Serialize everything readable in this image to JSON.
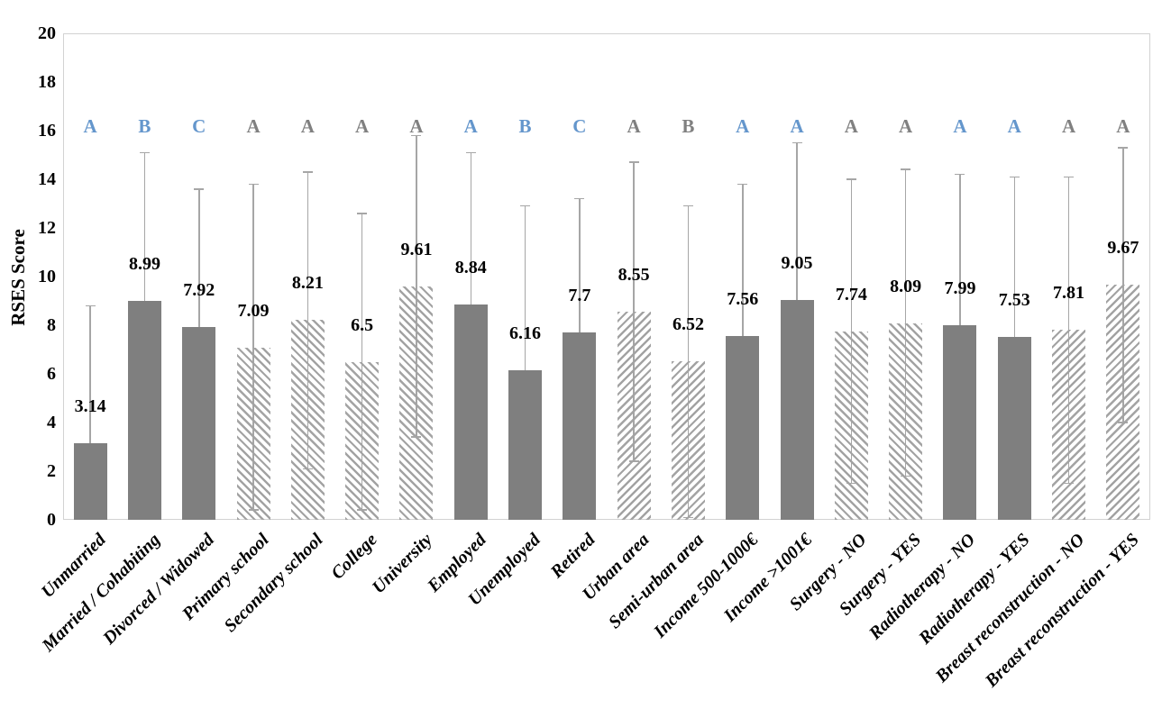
{
  "chart_data": {
    "type": "bar",
    "title": "",
    "xlabel": "",
    "ylabel": "RSES Score",
    "ylim": [
      0,
      20
    ],
    "yticks": [
      0,
      2,
      4,
      6,
      8,
      10,
      12,
      14,
      16,
      18,
      20
    ],
    "grid": false,
    "legend": "none",
    "letter_row_y_value": 16.2,
    "colors": {
      "solid_bar": "#7f7f7f",
      "hatch_stripe": "#a3a3a3",
      "error_bar": "#a6a6a6",
      "letter_blue": "#6496cc",
      "letter_gray": "#808080",
      "axis_border": "#d2d2d2",
      "text": "#000000"
    },
    "bars": [
      {
        "category": "Unmarried",
        "value": 3.14,
        "label": "3.14",
        "letter": "A",
        "letter_color": "blue",
        "pattern": "solid",
        "err_high": 8.8,
        "err_low": 0
      },
      {
        "category": "Married / Cohabiting",
        "value": 8.99,
        "label": "8.99",
        "letter": "B",
        "letter_color": "blue",
        "pattern": "solid",
        "err_high": 15.1,
        "err_low": 2.9
      },
      {
        "category": "Divorced / Widowed",
        "value": 7.92,
        "label": "7.92",
        "letter": "C",
        "letter_color": "blue",
        "pattern": "solid",
        "err_high": 13.6,
        "err_low": 2.2
      },
      {
        "category": "Primary school",
        "value": 7.09,
        "label": "7.09",
        "letter": "A",
        "letter_color": "gray",
        "pattern": "hatchdown",
        "err_high": 13.8,
        "err_low": 0.4
      },
      {
        "category": "Secondary school",
        "value": 8.21,
        "label": "8.21",
        "letter": "A",
        "letter_color": "gray",
        "pattern": "hatchdown",
        "err_high": 14.3,
        "err_low": 2.1
      },
      {
        "category": "College",
        "value": 6.5,
        "label": "6.5",
        "letter": "A",
        "letter_color": "gray",
        "pattern": "hatchdown",
        "err_high": 12.6,
        "err_low": 0.4
      },
      {
        "category": "University",
        "value": 9.61,
        "label": "9.61",
        "letter": "A",
        "letter_color": "gray",
        "pattern": "hatchdown",
        "err_high": 15.8,
        "err_low": 3.4
      },
      {
        "category": "Employed",
        "value": 8.84,
        "label": "8.84",
        "letter": "A",
        "letter_color": "blue",
        "pattern": "solid",
        "err_high": 15.1,
        "err_low": 2.6
      },
      {
        "category": "Unemployed",
        "value": 6.16,
        "label": "6.16",
        "letter": "B",
        "letter_color": "blue",
        "pattern": "solid",
        "err_high": 12.9,
        "err_low": 0
      },
      {
        "category": "Retired",
        "value": 7.7,
        "label": "7.7",
        "letter": "C",
        "letter_color": "blue",
        "pattern": "solid",
        "err_high": 13.2,
        "err_low": 2.2
      },
      {
        "category": "Urban area",
        "value": 8.55,
        "label": "8.55",
        "letter": "A",
        "letter_color": "gray",
        "pattern": "hatchup",
        "err_high": 14.7,
        "err_low": 2.4
      },
      {
        "category": "Semi-urban area",
        "value": 6.52,
        "label": "6.52",
        "letter": "B",
        "letter_color": "gray",
        "pattern": "hatchup",
        "err_high": 12.9,
        "err_low": 0.1
      },
      {
        "category": "Income 500-1000€",
        "value": 7.56,
        "label": "7.56",
        "letter": "A",
        "letter_color": "blue",
        "pattern": "solid",
        "err_high": 13.8,
        "err_low": 1.3
      },
      {
        "category": "Income >1001€",
        "value": 9.05,
        "label": "9.05",
        "letter": "A",
        "letter_color": "blue",
        "pattern": "solid",
        "err_high": 15.5,
        "err_low": 2.6
      },
      {
        "category": "Surgery - NO",
        "value": 7.74,
        "label": "7.74",
        "letter": "A",
        "letter_color": "gray",
        "pattern": "hatchdown",
        "err_high": 14.0,
        "err_low": 1.5
      },
      {
        "category": "Surgery - YES",
        "value": 8.09,
        "label": "8.09",
        "letter": "A",
        "letter_color": "gray",
        "pattern": "hatchdown",
        "err_high": 14.4,
        "err_low": 1.8
      },
      {
        "category": "Radiotherapy - NO",
        "value": 7.99,
        "label": "7.99",
        "letter": "A",
        "letter_color": "blue",
        "pattern": "solid",
        "err_high": 14.2,
        "err_low": 1.8
      },
      {
        "category": "Radiotherapy - YES",
        "value": 7.53,
        "label": "7.53",
        "letter": "A",
        "letter_color": "blue",
        "pattern": "solid",
        "err_high": 14.1,
        "err_low": 1.0
      },
      {
        "category": "Breast reconstruction - NO",
        "value": 7.81,
        "label": "7.81",
        "letter": "A",
        "letter_color": "gray",
        "pattern": "hatchup",
        "err_high": 14.1,
        "err_low": 1.5
      },
      {
        "category": "Breast reconstruction - YES",
        "value": 9.67,
        "label": "9.67",
        "letter": "A",
        "letter_color": "gray",
        "pattern": "hatchup",
        "err_high": 15.3,
        "err_low": 4.0
      }
    ]
  }
}
